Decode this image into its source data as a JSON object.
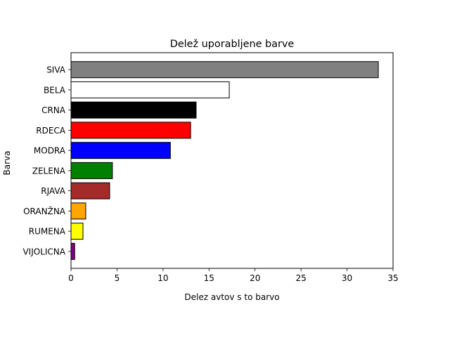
{
  "chart_data": {
    "type": "bar",
    "orientation": "horizontal",
    "title": "Delež uporabljene barve",
    "xlabel": "Delez avtov s to barvo",
    "ylabel": "Barva",
    "xlim": [
      0,
      35
    ],
    "xticks": [
      0,
      5,
      10,
      15,
      20,
      25,
      30,
      35
    ],
    "grid": false,
    "categories": [
      "SIVA",
      "BELA",
      "CRNA",
      "RDECA",
      "MODRA",
      "ZELENA",
      "RJAVA",
      "ORANŽNA",
      "RUMENA",
      "VIJOLICNA"
    ],
    "values": [
      33.4,
      17.2,
      13.6,
      13.0,
      10.8,
      4.5,
      4.2,
      1.6,
      1.3,
      0.4
    ],
    "colors": [
      "#808080",
      "#ffffff",
      "#000000",
      "#ff0000",
      "#0000ff",
      "#008000",
      "#a52a2a",
      "#ffa500",
      "#ffff00",
      "#800080"
    ],
    "edge_color": "#000000"
  }
}
